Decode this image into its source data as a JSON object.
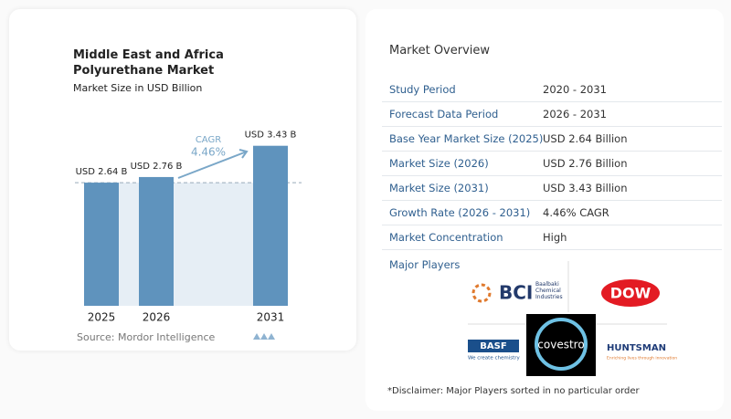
{
  "chart_data": {
    "type": "bar",
    "title": "Middle East and Africa Polyurethane Market",
    "subtitle": "Market Size in USD Billion",
    "categories": [
      "2025",
      "2026",
      "2031"
    ],
    "values": [
      2.64,
      2.76,
      3.43
    ],
    "value_labels": [
      "USD 2.64 B",
      "USD 2.76 B",
      "USD 3.43 B"
    ],
    "color": "#5f93bd",
    "ylim": [
      0,
      3.6
    ],
    "annotations": {
      "cagr_label": "CAGR",
      "cagr_value": "4.46%"
    },
    "source": "Source: Mordor Intelligence"
  },
  "overview": {
    "title": "Market Overview",
    "rows": [
      [
        "Study Period",
        "2020 - 2031"
      ],
      [
        "Forecast Data Period",
        "2026 - 2031"
      ],
      [
        "Base Year Market Size (2025)",
        "USD 2.64 Billion"
      ],
      [
        "Market Size (2026)",
        "USD 2.76 Billion"
      ],
      [
        "Market Size (2031)",
        "USD 3.43 Billion"
      ],
      [
        "Growth Rate (2026 - 2031)",
        "4.46% CAGR"
      ],
      [
        "Market Concentration",
        "High"
      ]
    ],
    "players_title": "Major Players",
    "players": {
      "bci": "BCI",
      "bci_sub": "Baalbaki Chemical Industries",
      "dow": "DOW",
      "basf": "BASF",
      "basf_sub": "We create chemistry",
      "covestro": "covestro",
      "huntsman": "HUNTSMAN",
      "huntsman_sub": "Enriching lives through innovation"
    },
    "disclaimer": "*Disclaimer: Major Players sorted in no particular order"
  }
}
